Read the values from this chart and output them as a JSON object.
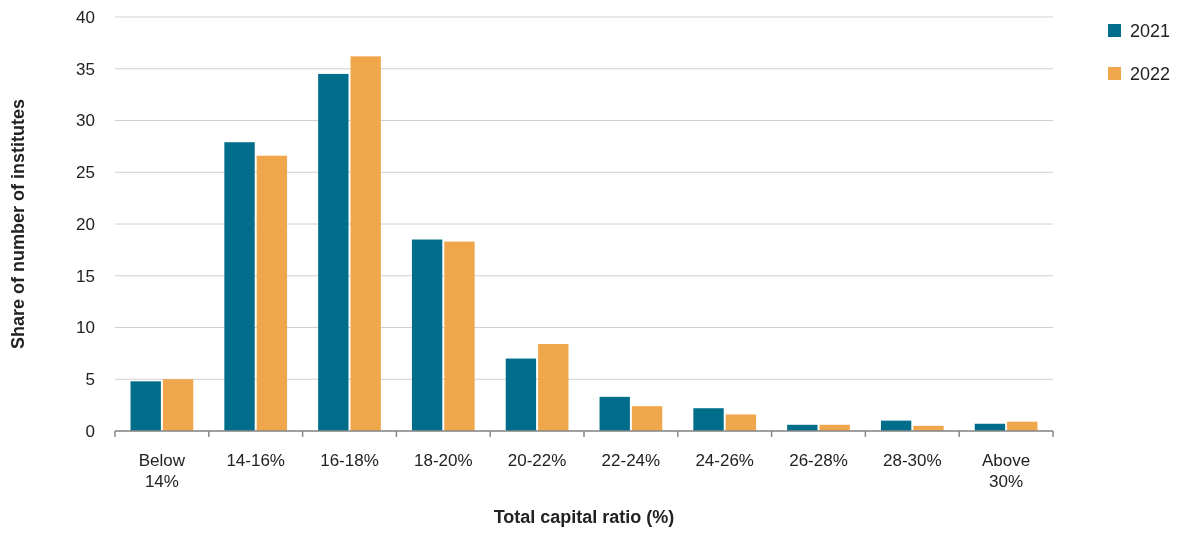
{
  "chart_data": {
    "type": "bar",
    "xlabel": "Total capital ratio (%)",
    "ylabel": "Share of number of institutes",
    "categories": [
      "Below 14%",
      "14-16%",
      "16-18%",
      "18-20%",
      "20-22%",
      "22-24%",
      "24-26%",
      "26-28%",
      "28-30%",
      "Above 30%"
    ],
    "series": [
      {
        "name": "2021",
        "color": "#006e8a",
        "values": [
          4.8,
          27.9,
          34.5,
          18.5,
          7.0,
          3.3,
          2.2,
          0.6,
          1.0,
          0.7
        ]
      },
      {
        "name": "2022",
        "color": "#f0a64a",
        "values": [
          5.0,
          26.6,
          36.2,
          18.3,
          8.4,
          2.4,
          1.6,
          0.6,
          0.5,
          0.9
        ]
      }
    ],
    "ylim": [
      0,
      40
    ],
    "yticks": [
      0,
      5,
      10,
      15,
      20,
      25,
      30,
      35,
      40
    ],
    "grid": "y",
    "legend": "top right"
  }
}
